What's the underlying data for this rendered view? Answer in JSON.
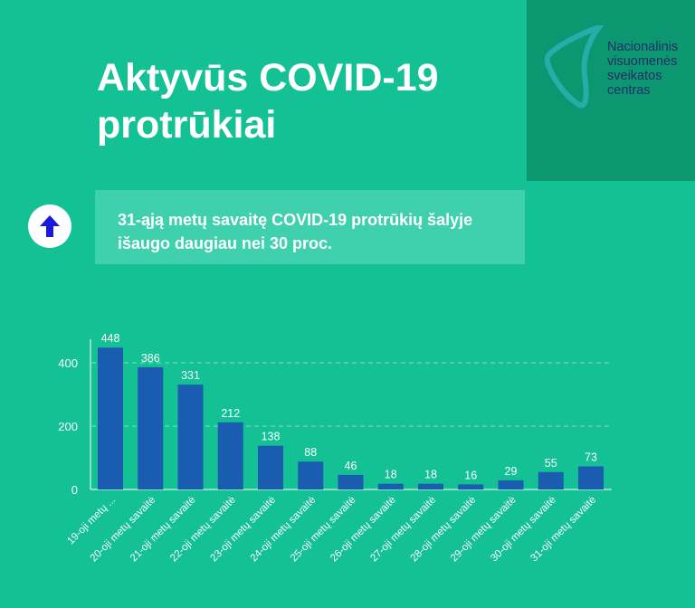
{
  "header": {
    "title": "Aktyvūs COVID-19 protrūkiai"
  },
  "logo": {
    "text": "Nacionalinis\nvisuomenės\nsveikatos\ncentras"
  },
  "callout": {
    "icon": "arrow-up-icon",
    "text": "31-ąją metų savaitę COVID-19 protrūkių šalyje išaugo daugiau nei 30 proc."
  },
  "colors": {
    "background": "#13c194",
    "bar": "#1a5cb0",
    "logo_bg": "#0d9771"
  },
  "chart_data": {
    "type": "bar",
    "categories": [
      "19-oji metų ...",
      "20-oji metų savaitė",
      "21-oji metų savaitė",
      "22-oji metų savaitė",
      "23-oji metų savaitė",
      "24-oji metų savaitė",
      "25-oji metų savaitė",
      "26-oji metų savaitė",
      "27-oji metų savaitė",
      "28-oji metų savaitė",
      "29-oji metų savaitė",
      "30-oji metų savaitė",
      "31-oji metų savaitė"
    ],
    "values": [
      448,
      386,
      331,
      212,
      138,
      88,
      46,
      18,
      18,
      16,
      29,
      55,
      73
    ],
    "yticks": [
      0,
      200,
      400
    ],
    "ylim": [
      0,
      480
    ],
    "grid": true
  }
}
